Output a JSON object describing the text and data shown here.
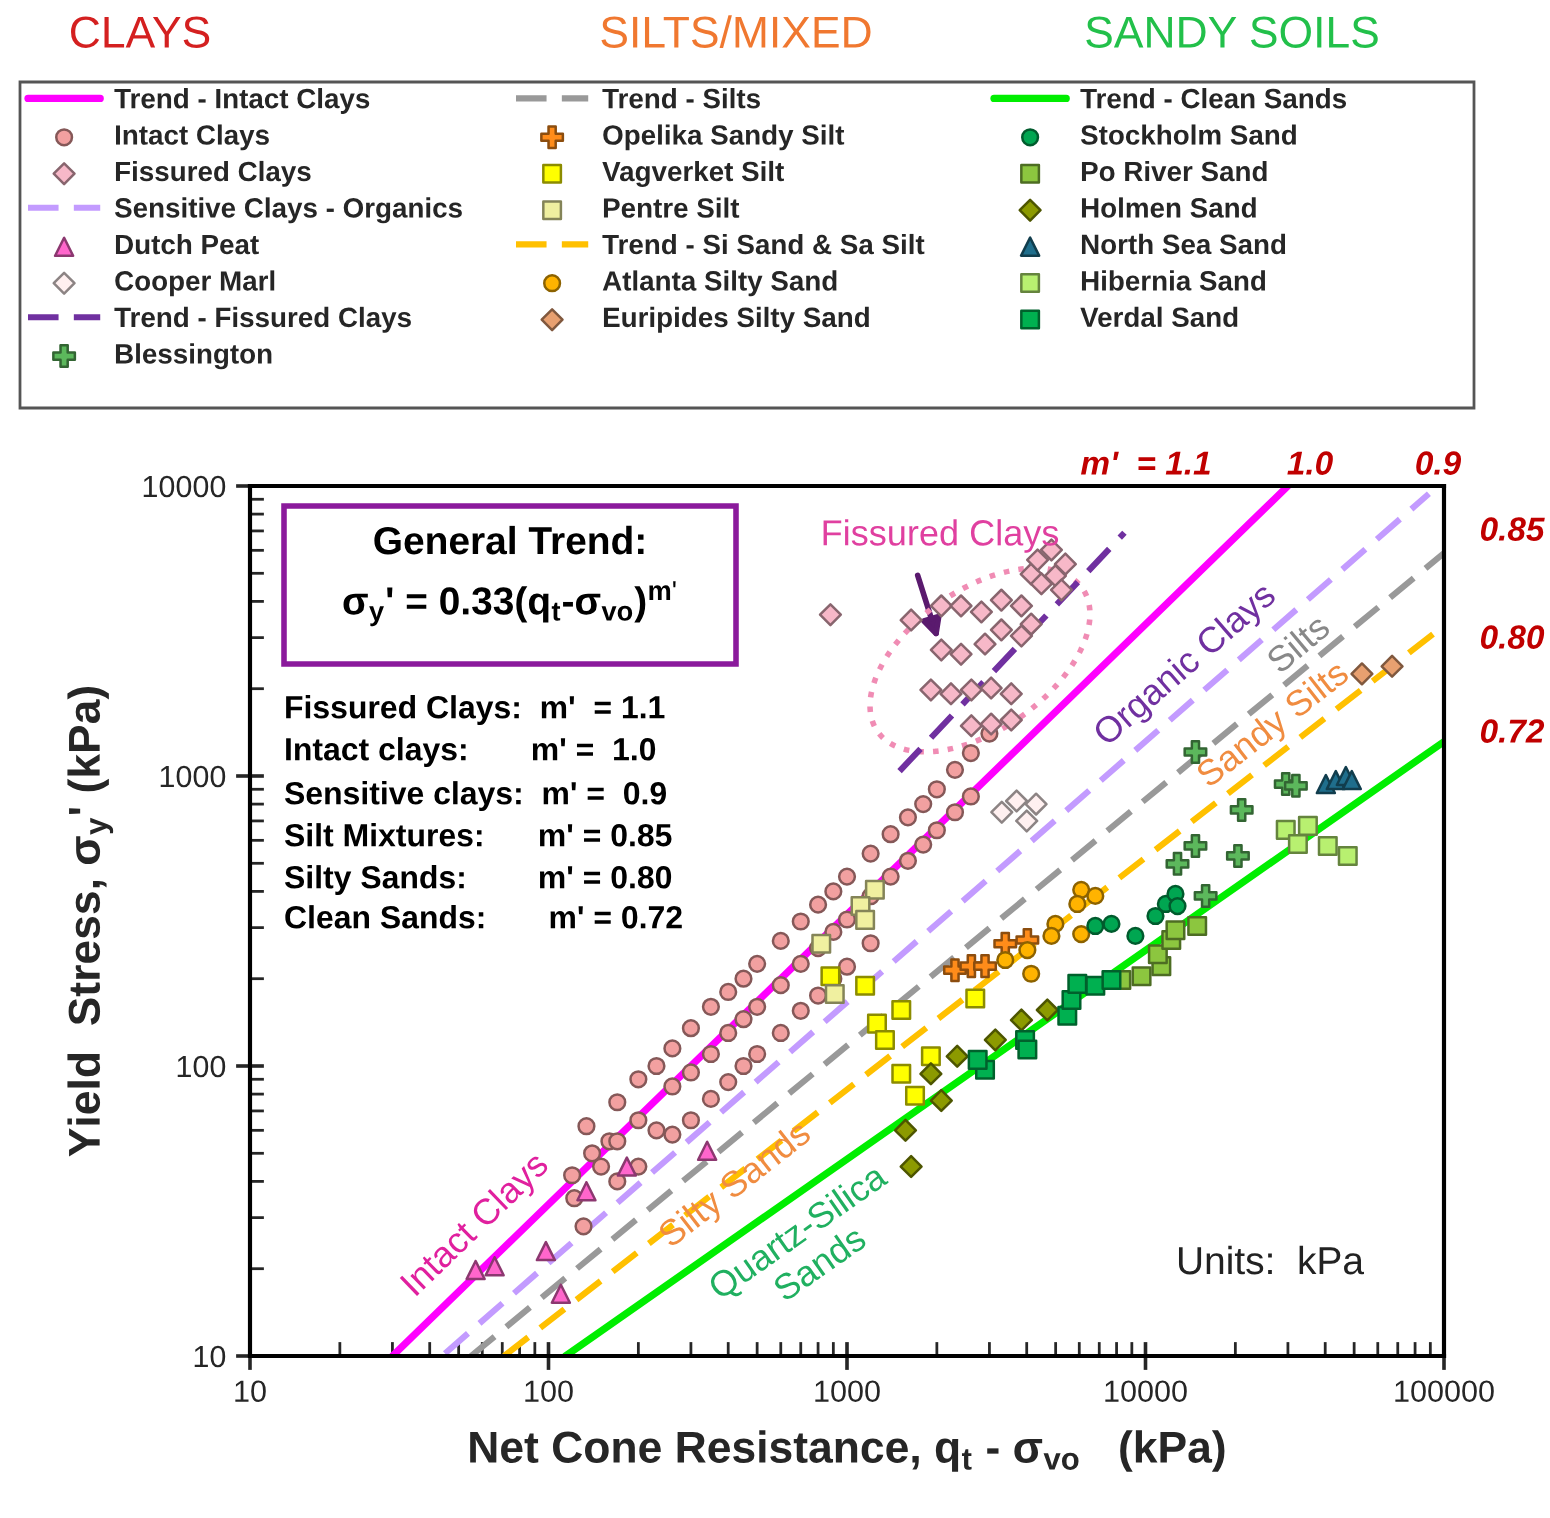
{
  "chart_data": {
    "type": "scatter",
    "xlabel": "Net Cone Resistance, q$_{t}$ - σ$_{vo}$   (kPa)",
    "ylabel": "Yield  Stress, σ$_{y}$' (kPa)",
    "log": "xy",
    "xlim": [
      10,
      100000
    ],
    "ylim": [
      10,
      10000
    ],
    "xticks": [
      10,
      100,
      1000,
      10000,
      100000
    ],
    "yticks": [
      10,
      100,
      1000,
      10000
    ],
    "grid": false,
    "legend": "top",
    "annotations": [
      "CLAYS",
      "SILTS/MIXED",
      "SANDY SOILS",
      "General Trend:",
      "σ$_{y}$' = 0.33(q$_{t}$-σ$_{vo}$)$^{m'}$",
      "Fissured Clays:  m'  = 1.1",
      "Intact clays:       m' =  1.0",
      "Sensitive clays:  m' =  0.9",
      "Silt Mixtures:      m' = 0.85",
      "Silty Sands:        m' = 0.80",
      "Clean Sands:       m' = 0.72",
      "m'  = 1.1",
      "1.0",
      "0.9",
      "0.85",
      "0.80",
      "0.72",
      "Intact Clays",
      "Organic Clays",
      "Silts",
      "Sandy Silts",
      "Silty Sands",
      "Quartz-Silica\nSands",
      {
        "text": "Fissured Clays",
        "x": 2070,
        "y": 2720
      },
      "Units:  kPa"
    ],
    "series": [
      {
        "name": "Trend - Intact Clays",
        "type": "line",
        "marker": "none",
        "line_style": "solid",
        "color": "#ff00ff",
        "x": [
          30,
          30000
        ],
        "values": [
          10,
          10000
        ]
      },
      {
        "name": "Intact Clays",
        "marker": "circle",
        "color": "#f2a0a0",
        "x": [
          120,
          122,
          131,
          134,
          140,
          150,
          160,
          170,
          170,
          170,
          200,
          200,
          200,
          230,
          230,
          260,
          260,
          260,
          300,
          300,
          300,
          350,
          350,
          350,
          400,
          400,
          400,
          450,
          450,
          450,
          500,
          500,
          500,
          600,
          600,
          600,
          700,
          700,
          700,
          800,
          800,
          800,
          900,
          900,
          900,
          1000,
          1000,
          1000,
          1200,
          1200,
          1200,
          1400,
          1400,
          1600,
          1600,
          1800,
          1800,
          2000,
          2000,
          2300,
          2300,
          2600,
          2600,
          3000
        ],
        "values": [
          42,
          35,
          28,
          62,
          50,
          45,
          55,
          75,
          55,
          40,
          90,
          65,
          45,
          100,
          60,
          115,
          85,
          58,
          135,
          95,
          65,
          160,
          110,
          77,
          180,
          130,
          88,
          200,
          145,
          100,
          225,
          160,
          110,
          270,
          190,
          130,
          315,
          225,
          155,
          360,
          255,
          175,
          400,
          290,
          200,
          450,
          320,
          220,
          540,
          385,
          265,
          630,
          450,
          720,
          510,
          800,
          580,
          900,
          650,
          1050,
          750,
          1200,
          850,
          1400
        ]
      },
      {
        "name": "Fissured Clays",
        "marker": "diamond",
        "color": "#f7b8c8",
        "x": [
          880,
          1640,
          2070,
          2410,
          2820,
          3290,
          3840,
          4140,
          2070,
          2410,
          2900,
          1910,
          2230,
          2610,
          3040,
          3550,
          2610,
          3040,
          3550,
          4140,
          4480,
          4990,
          5230,
          4350,
          4840,
          5390,
          3290,
          3840
        ],
        "values": [
          3600,
          3450,
          3860,
          3860,
          3680,
          4040,
          3860,
          3340,
          2720,
          2630,
          2850,
          1980,
          1920,
          1980,
          2010,
          1920,
          1490,
          1510,
          1560,
          4970,
          4600,
          4900,
          4380,
          5560,
          6020,
          5380,
          3190,
          3040
        ]
      },
      {
        "name": "Sensitive Clays - Organics",
        "type": "line",
        "marker": "none",
        "line_style": "dashed",
        "color": "#c39bff",
        "x": [
          45,
          89000
        ],
        "values": [
          10.2,
          9400
        ]
      },
      {
        "name": "Dutch Peat",
        "marker": "triangle",
        "color": "#ff66cc",
        "x": [
          57,
          66,
          98,
          110,
          134,
          183,
          340
        ],
        "values": [
          19.8,
          20.4,
          23,
          16.4,
          37,
          45,
          51
        ]
      },
      {
        "name": "Cooper Marl",
        "marker": "diamond",
        "color": "#fff0f0",
        "x": [
          3300,
          3700,
          4300,
          4000
        ],
        "values": [
          750,
          820,
          800,
          700
        ]
      },
      {
        "name": "Trend - Fissured Clays",
        "type": "line",
        "marker": "none",
        "line_style": "dashed",
        "color": "#7030a0",
        "x": [
          1500,
          8500
        ],
        "values": [
          1040,
          6900
        ]
      },
      {
        "name": "Blessington",
        "marker": "cross",
        "color": "#5cb85c",
        "x": [
          14700,
          29500,
          31900,
          21000,
          14700,
          12800,
          20400,
          15900
        ],
        "values": [
          1210,
          938,
          925,
          764,
          574,
          498,
          530,
          386
        ]
      },
      {
        "name": "Trend - Silts",
        "type": "line",
        "marker": "none",
        "line_style": "dashed",
        "color": "#999999",
        "x": [
          55,
          100000
        ],
        "values": [
          10,
          5870
        ]
      },
      {
        "name": "Opelika Sandy Silt",
        "marker": "cross",
        "color": "#ff8c1a",
        "x": [
          2300,
          2610,
          2900,
          3390,
          4020
        ],
        "values": [
          214,
          221,
          221,
          264,
          272
        ]
      },
      {
        "name": "Vagverket Silt",
        "marker": "square",
        "color": "#ffff00",
        "x": [
          880,
          1150,
          1260,
          1520,
          1340,
          1910,
          1520,
          1690,
          2690
        ],
        "values": [
          204,
          189,
          140,
          156,
          123,
          108,
          94,
          79,
          171
        ]
      },
      {
        "name": "Pentre Silt",
        "marker": "square",
        "color": "#f0f0a0",
        "x": [
          1240,
          1110,
          1150,
          820,
          910
        ],
        "values": [
          405,
          356,
          319,
          264,
          177
        ]
      },
      {
        "name": "Trend - Si Sand & Sa Silt",
        "type": "line",
        "marker": "none",
        "line_style": "dashed",
        "color": "#ffc000",
        "x": [
          71,
          100000
        ],
        "values": [
          10,
          3300
        ]
      },
      {
        "name": "Atlanta Silty Sand",
        "marker": "circle",
        "color": "#ffb300",
        "x": [
          3390,
          4020,
          4140,
          4990,
          4840,
          6090,
          6090,
          6790,
          5910
        ],
        "values": [
          232,
          251,
          208,
          309,
          281,
          285,
          405,
          386,
          362
        ]
      },
      {
        "name": "Euripides Silty Sand",
        "marker": "diamond",
        "color": "#e8a070",
        "x": [
          53100,
          67000
        ],
        "values": [
          2250,
          2390
        ]
      },
      {
        "name": "Trend - Clean Sands",
        "type": "line",
        "marker": "none",
        "line_style": "solid",
        "color": "#00ee00",
        "x": [
          114,
          100000
        ],
        "values": [
          10,
          1314
        ]
      },
      {
        "name": "Stockholm Sand",
        "marker": "circle",
        "color": "#00a651",
        "x": [
          6790,
          7690,
          9250,
          10800,
          11700,
          12600,
          12800
        ],
        "values": [
          304,
          309,
          281,
          329,
          362,
          392,
          356
        ]
      },
      {
        "name": "Po River Sand",
        "marker": "square",
        "color": "#8cc63f",
        "x": [
          8300,
          9700,
          11300,
          11000,
          12200,
          12600,
          14900
        ],
        "values": [
          198,
          204,
          221,
          243,
          272,
          294,
          304
        ]
      },
      {
        "name": "Holmen Sand",
        "marker": "diamond",
        "color": "#8c9a00",
        "x": [
          1640,
          1570,
          2070,
          1910,
          2340,
          3140,
          3840,
          4690
        ],
        "values": [
          45,
          60,
          76,
          94,
          108,
          123,
          144,
          156
        ]
      },
      {
        "name": "North Sea Sand",
        "marker": "triangle",
        "color": "#1f6e8c",
        "x": [
          40200,
          43400,
          46900,
          49100
        ],
        "values": [
          938,
          968,
          1000,
          968
        ]
      },
      {
        "name": "Hibernia Sand",
        "marker": "square",
        "color": "#b8f070",
        "x": [
          29500,
          35000,
          32400,
          40800,
          47600
        ],
        "values": [
          652,
          673,
          583,
          574,
          530
        ]
      },
      {
        "name": "Verdal Sand",
        "marker": "square",
        "color": "#00b050",
        "x": [
          2900,
          2740,
          3950,
          4020,
          5470,
          5650,
          5910,
          6790,
          7690
        ],
        "values": [
          97,
          105,
          123,
          114,
          149,
          169,
          192,
          189,
          198
        ]
      }
    ]
  }
}
